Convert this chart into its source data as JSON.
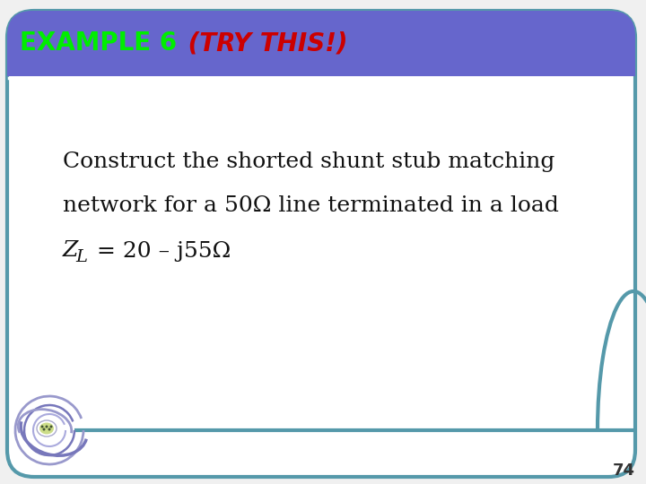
{
  "title_example": "EXAMPLE 6",
  "title_try": " (TRY THIS!)",
  "title_color_example": "#00ee00",
  "title_color_try": "#cc0000",
  "header_bg_color": "#6666cc",
  "body_bg_color": "#ffffff",
  "border_color": "#5599aa",
  "line1": "Construct the shorted shunt stub matching",
  "line2": "network for a 50Ω line terminated in a load",
  "line3_suffix": " = 20 – j55Ω",
  "body_text_color": "#111111",
  "body_fontsize": 18,
  "divider_color": "#ffffff",
  "accent_color": "#5599aa",
  "page_number": "74",
  "page_num_color": "#333333",
  "page_num_fontsize": 13,
  "title_fontsize": 20
}
